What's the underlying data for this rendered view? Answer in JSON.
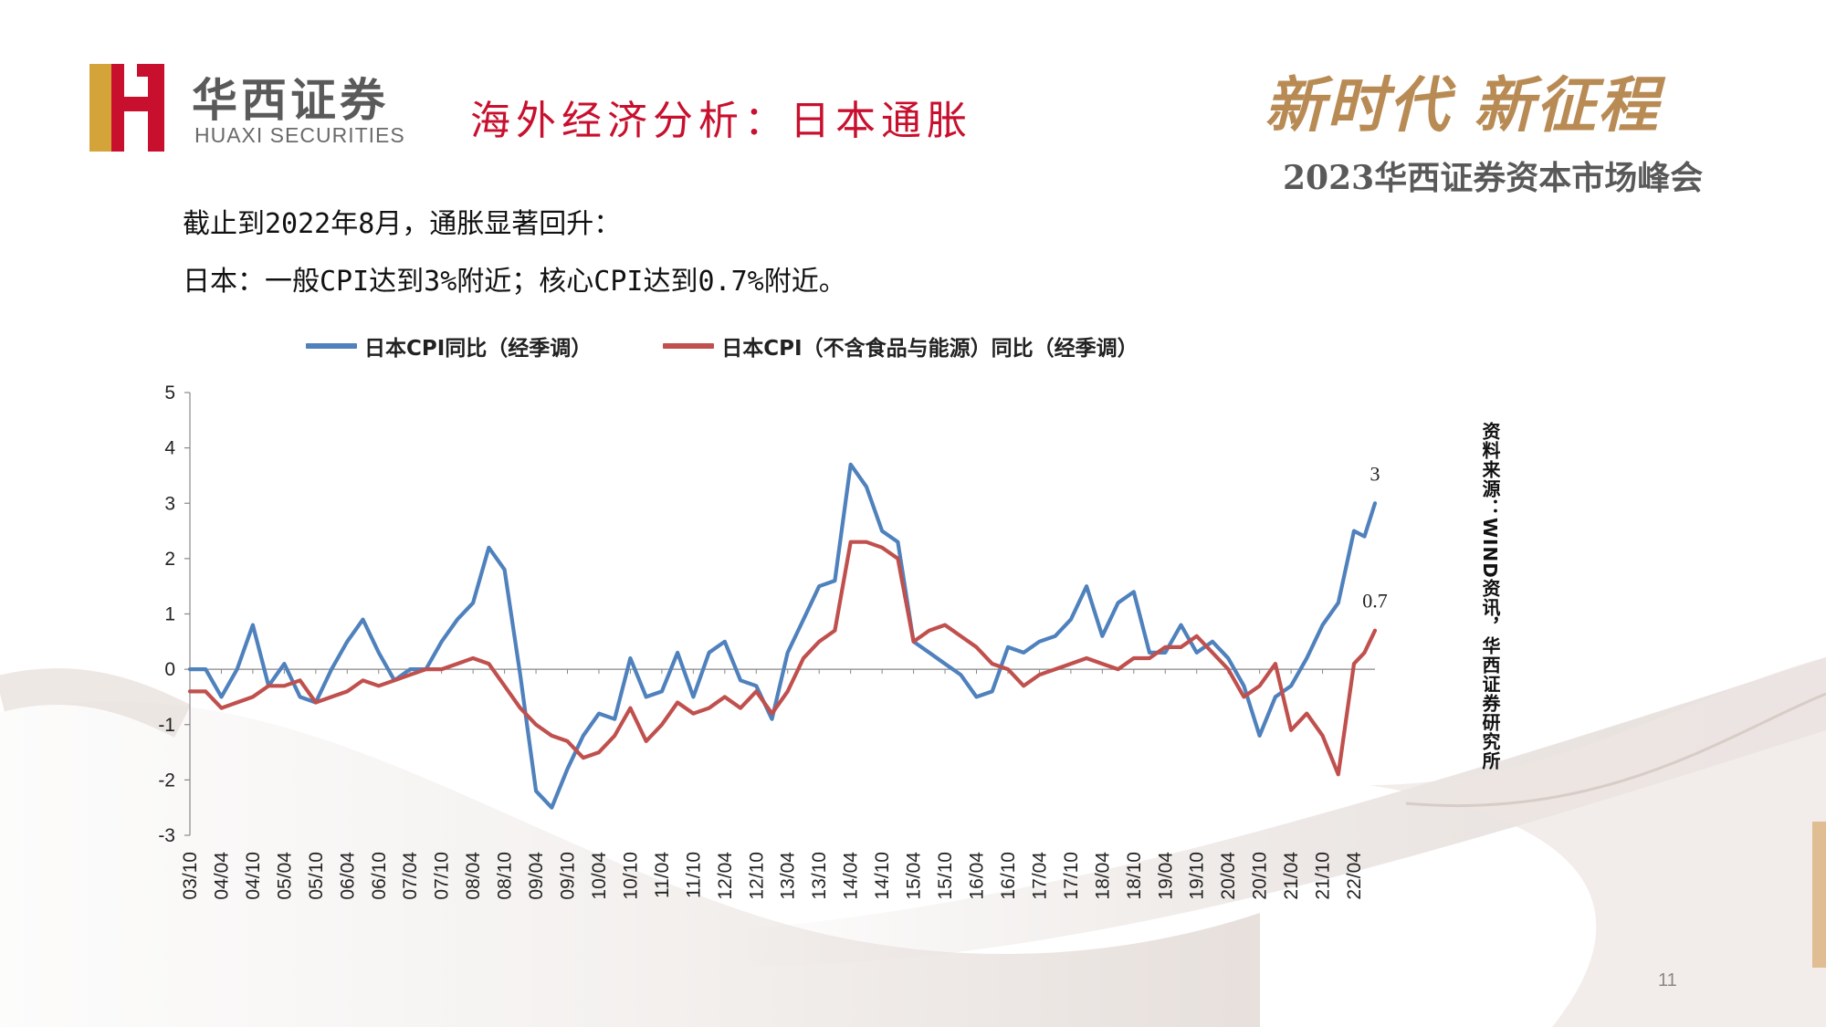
{
  "header": {
    "logo_cn": "华西证券",
    "logo_en": "HUAXI SECURITIES",
    "title": "海外经济分析：日本通胀",
    "slogan": "新时代 新征程",
    "summit": "2023华西证券资本市场峰会"
  },
  "body": {
    "line1": "截止到2022年8月，通胀显著回升：",
    "line2": "日本：一般CPI达到3%附近；核心CPI达到0.7%附近。"
  },
  "source": "资料来源：WIND资讯，华西证券研究所",
  "page_number": "11",
  "colors": {
    "blue": "#4f81bd",
    "red": "#c0504d",
    "title_red": "#c8102e"
  },
  "chart_data": {
    "type": "line",
    "title": "",
    "xlabel": "",
    "ylabel": "",
    "ylim": [
      -3,
      5
    ],
    "yticks": [
      "5",
      "4",
      "3",
      "2",
      "1",
      "0",
      "-1",
      "-2",
      "-3"
    ],
    "x_tick_labels": [
      "03/10",
      "04/04",
      "04/10",
      "05/04",
      "05/10",
      "06/04",
      "06/10",
      "07/04",
      "07/10",
      "08/04",
      "08/10",
      "09/04",
      "09/10",
      "10/04",
      "10/10",
      "11/04",
      "11/10",
      "12/04",
      "12/10",
      "13/04",
      "13/10",
      "14/04",
      "14/10",
      "15/04",
      "15/10",
      "16/04",
      "16/10",
      "17/04",
      "17/10",
      "18/04",
      "18/10",
      "19/04",
      "19/10",
      "20/04",
      "20/10",
      "21/04",
      "21/10",
      "22/04"
    ],
    "x": [
      "2003-10",
      "2004-01",
      "2004-04",
      "2004-07",
      "2004-10",
      "2005-01",
      "2005-04",
      "2005-07",
      "2005-10",
      "2006-01",
      "2006-04",
      "2006-07",
      "2006-10",
      "2007-01",
      "2007-04",
      "2007-07",
      "2007-10",
      "2008-01",
      "2008-04",
      "2008-07",
      "2008-10",
      "2009-01",
      "2009-04",
      "2009-07",
      "2009-10",
      "2010-01",
      "2010-04",
      "2010-07",
      "2010-10",
      "2011-01",
      "2011-04",
      "2011-07",
      "2011-10",
      "2012-01",
      "2012-04",
      "2012-07",
      "2012-10",
      "2013-01",
      "2013-04",
      "2013-07",
      "2013-10",
      "2014-01",
      "2014-04",
      "2014-07",
      "2014-10",
      "2015-01",
      "2015-04",
      "2015-07",
      "2015-10",
      "2016-01",
      "2016-04",
      "2016-07",
      "2016-10",
      "2017-01",
      "2017-04",
      "2017-07",
      "2017-10",
      "2018-01",
      "2018-04",
      "2018-07",
      "2018-10",
      "2019-01",
      "2019-04",
      "2019-07",
      "2019-10",
      "2020-01",
      "2020-04",
      "2020-07",
      "2020-10",
      "2021-01",
      "2021-04",
      "2021-07",
      "2021-10",
      "2022-01",
      "2022-04",
      "2022-06",
      "2022-08"
    ],
    "series": [
      {
        "name": "日本CPI同比（经季调）",
        "color": "#4f81bd",
        "values": [
          0,
          0,
          -0.5,
          0,
          0.8,
          -0.3,
          0.1,
          -0.5,
          -0.6,
          0,
          0.5,
          0.9,
          0.3,
          -0.2,
          0,
          0,
          0.5,
          0.9,
          1.2,
          2.2,
          1.8,
          -0.1,
          -2.2,
          -2.5,
          -1.8,
          -1.2,
          -0.8,
          -0.9,
          0.2,
          -0.5,
          -0.4,
          0.3,
          -0.5,
          0.3,
          0.5,
          -0.2,
          -0.3,
          -0.9,
          0.3,
          0.9,
          1.5,
          1.6,
          3.7,
          3.3,
          2.5,
          2.3,
          0.5,
          0.3,
          0.1,
          -0.1,
          -0.5,
          -0.4,
          0.4,
          0.3,
          0.5,
          0.6,
          0.9,
          1.5,
          0.6,
          1.2,
          1.4,
          0.3,
          0.3,
          0.8,
          0.3,
          0.5,
          0.2,
          -0.3,
          -1.2,
          -0.5,
          -0.3,
          0.2,
          0.8,
          1.2,
          2.5,
          2.4,
          3.0
        ]
      },
      {
        "name": "日本CPI（不含食品与能源）同比（经季调）",
        "color": "#c0504d",
        "values": [
          -0.4,
          -0.4,
          -0.7,
          -0.6,
          -0.5,
          -0.3,
          -0.3,
          -0.2,
          -0.6,
          -0.5,
          -0.4,
          -0.2,
          -0.3,
          -0.2,
          -0.1,
          0,
          0,
          0.1,
          0.2,
          0.1,
          -0.3,
          -0.7,
          -1.0,
          -1.2,
          -1.3,
          -1.6,
          -1.5,
          -1.2,
          -0.7,
          -1.3,
          -1.0,
          -0.6,
          -0.8,
          -0.7,
          -0.5,
          -0.7,
          -0.4,
          -0.8,
          -0.4,
          0.2,
          0.5,
          0.7,
          2.3,
          2.3,
          2.2,
          2.0,
          0.5,
          0.7,
          0.8,
          0.6,
          0.4,
          0.1,
          0,
          -0.3,
          -0.1,
          0,
          0.1,
          0.2,
          0.1,
          0,
          0.2,
          0.2,
          0.4,
          0.4,
          0.6,
          0.3,
          0,
          -0.5,
          -0.3,
          0.1,
          -1.1,
          -0.8,
          -1.2,
          -1.9,
          0.1,
          0.3,
          0.7
        ]
      }
    ],
    "annotations": [
      {
        "text": "3",
        "series": 0
      },
      {
        "text": "0.7",
        "series": 1
      }
    ],
    "grid": false,
    "legend_position": "top"
  }
}
